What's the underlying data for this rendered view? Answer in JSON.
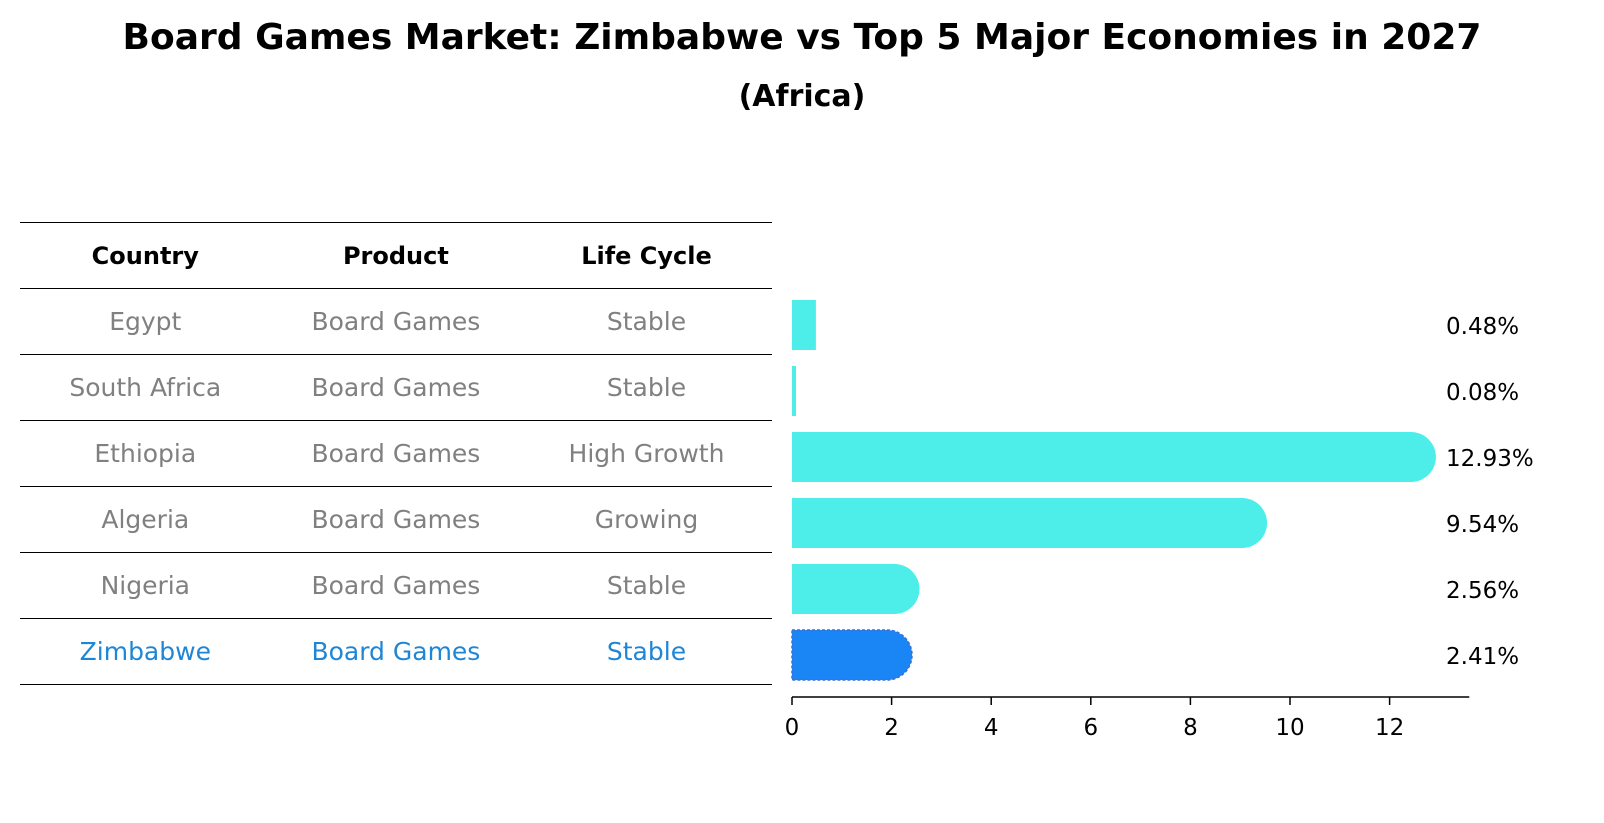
{
  "title": "Board Games Market: Zimbabwe vs Top 5 Major Economies in 2027",
  "subtitle": "(Africa)",
  "table": {
    "headers": [
      "Country",
      "Product",
      "Life Cycle"
    ],
    "rows": [
      {
        "country": "Egypt",
        "product": "Board Games",
        "life_cycle": "Stable"
      },
      {
        "country": "South Africa",
        "product": "Board Games",
        "life_cycle": "Stable"
      },
      {
        "country": "Ethiopia",
        "product": "Board Games",
        "life_cycle": "High Growth"
      },
      {
        "country": "Algeria",
        "product": "Board Games",
        "life_cycle": "Growing"
      },
      {
        "country": "Nigeria",
        "product": "Board Games",
        "life_cycle": "Stable"
      },
      {
        "country": "Zimbabwe",
        "product": "Board Games",
        "life_cycle": "Stable"
      }
    ]
  },
  "colors": {
    "bar": "#4deeea",
    "highlight_bar": "#1a85f5",
    "highlight_text": "#1f86d6",
    "muted_text": "#808080"
  },
  "chart_data": {
    "type": "bar",
    "orientation": "horizontal",
    "categories": [
      "Egypt",
      "South Africa",
      "Ethiopia",
      "Algeria",
      "Nigeria",
      "Zimbabwe"
    ],
    "values": [
      0.48,
      0.08,
      12.93,
      9.54,
      2.56,
      2.41
    ],
    "value_labels": [
      "0.48%",
      "0.08%",
      "12.93%",
      "9.54%",
      "2.56%",
      "2.41%"
    ],
    "highlight": "Zimbabwe",
    "xlim": [
      0,
      13.6
    ],
    "xticks": [
      0,
      2,
      4,
      6,
      8,
      10,
      12
    ],
    "xlabel": "",
    "ylabel": "",
    "grid": false,
    "legend": "none"
  }
}
